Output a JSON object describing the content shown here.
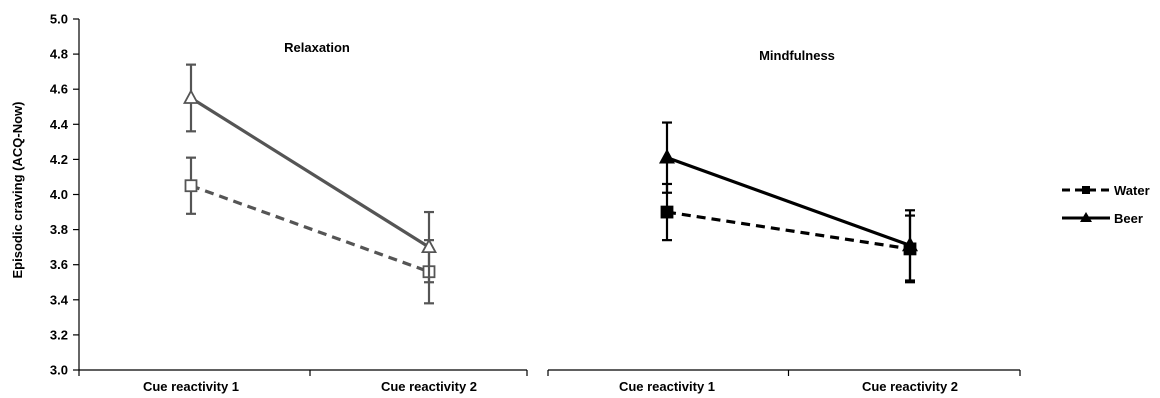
{
  "chart_data": {
    "type": "line",
    "ylabel": "Episodic craving (ACQ-Now)",
    "ylim": [
      3.0,
      5.0
    ],
    "yticks": [
      "3.0",
      "3.2",
      "3.4",
      "3.6",
      "3.8",
      "4.0",
      "4.2",
      "4.4",
      "4.6",
      "4.8",
      "5.0"
    ],
    "categories": [
      "Cue reactivity 1",
      "Cue reactivity 2"
    ],
    "legend": {
      "position": "right",
      "entries": [
        "Water",
        "Beer"
      ]
    },
    "panels": [
      {
        "title": "Relaxation",
        "series": [
          {
            "name": "Water",
            "style": "dashed",
            "marker": "open-square",
            "values": [
              4.05,
              3.56
            ],
            "errors": [
              0.16,
              0.18
            ]
          },
          {
            "name": "Beer",
            "style": "solid",
            "marker": "open-triangle",
            "values": [
              4.55,
              3.7
            ],
            "errors": [
              0.19,
              0.2
            ]
          }
        ]
      },
      {
        "title": "Mindfulness",
        "series": [
          {
            "name": "Water",
            "style": "dashed",
            "marker": "filled-square",
            "values": [
              3.9,
              3.69
            ],
            "errors": [
              0.16,
              0.19
            ]
          },
          {
            "name": "Beer",
            "style": "solid",
            "marker": "filled-triangle",
            "values": [
              4.21,
              3.71
            ],
            "errors": [
              0.2,
              0.2
            ]
          }
        ]
      }
    ],
    "colors": {
      "relaxation": "#555555",
      "mindfulness": "#000000"
    }
  }
}
